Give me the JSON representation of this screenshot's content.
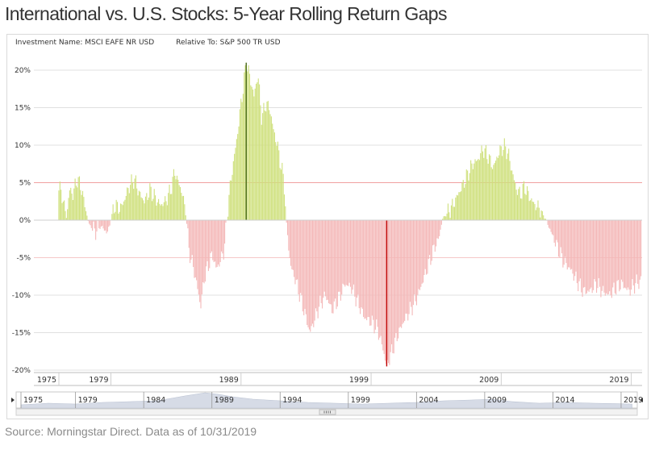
{
  "title": "International vs. U.S. Stocks: 5-Year Rolling Return Gaps",
  "header": {
    "investment": "Investment Name: MSCI EAFE NR USD",
    "relative": "Relative To: S&P 500 TR USD"
  },
  "source": "Source: Morningstar Direct. Data as of 10/31/2019",
  "colors": {
    "positive": "#cfe07d",
    "negative": "#f4b8b8",
    "grid": "#e0e0e0",
    "refline": "#f0a0a0",
    "highlightPos": "#4a6a1a",
    "highlightNeg": "#c00000"
  },
  "chart_data": {
    "type": "bar",
    "ylim": [
      -20,
      22
    ],
    "yticks": [
      {
        "v": 20,
        "label": "20%"
      },
      {
        "v": 15,
        "label": "15%"
      },
      {
        "v": 10,
        "label": "10%"
      },
      {
        "v": 5,
        "label": "5%"
      },
      {
        "v": 0,
        "label": "0%"
      },
      {
        "v": -5,
        "label": "-5%"
      },
      {
        "v": -10,
        "label": "-10%"
      },
      {
        "v": -15,
        "label": "-15%"
      },
      {
        "v": -20,
        "label": "-20%"
      }
    ],
    "x_range": [
      1975.0,
      2019.83
    ],
    "x_tick_labels": [
      {
        "year": 1975,
        "label": "1975"
      },
      {
        "year": 1979,
        "label": "1979"
      },
      {
        "year": 1989,
        "label": "1989"
      },
      {
        "year": 1999,
        "label": "1999"
      },
      {
        "year": 2009,
        "label": "2009"
      },
      {
        "year": 2019,
        "label": "2019"
      }
    ],
    "navigator_labels": [
      {
        "year": 1975,
        "label": "1975"
      },
      {
        "year": 1979,
        "label": "1979"
      },
      {
        "year": 1984,
        "label": "1984"
      },
      {
        "year": 1989,
        "label": "1989"
      },
      {
        "year": 1994,
        "label": "1994"
      },
      {
        "year": 1999,
        "label": "1999"
      },
      {
        "year": 2004,
        "label": "2004"
      },
      {
        "year": 2009,
        "label": "2009"
      },
      {
        "year": 2014,
        "label": "2014"
      },
      {
        "year": 2019,
        "label": "2019"
      }
    ],
    "series_points": [
      [
        1975.0,
        4.5
      ],
      [
        1975.3,
        3.0
      ],
      [
        1975.6,
        0.2
      ],
      [
        1975.8,
        4.0
      ],
      [
        1976.1,
        3.5
      ],
      [
        1976.4,
        5.5
      ],
      [
        1976.7,
        4.5
      ],
      [
        1977.0,
        2.0
      ],
      [
        1977.3,
        -0.5
      ],
      [
        1977.8,
        -1.5
      ],
      [
        1978.3,
        -0.8
      ],
      [
        1978.8,
        -1.8
      ],
      [
        1979.0,
        0.2
      ],
      [
        1979.3,
        2.0
      ],
      [
        1979.7,
        1.5
      ],
      [
        1980.0,
        2.5
      ],
      [
        1980.4,
        4.5
      ],
      [
        1980.8,
        5.5
      ],
      [
        1981.2,
        3.5
      ],
      [
        1981.6,
        2.5
      ],
      [
        1982.0,
        4.0
      ],
      [
        1982.4,
        3.0
      ],
      [
        1982.8,
        2.0
      ],
      [
        1983.2,
        2.5
      ],
      [
        1983.6,
        4.0
      ],
      [
        1983.9,
        6.5
      ],
      [
        1984.2,
        5.0
      ],
      [
        1984.5,
        3.5
      ],
      [
        1984.8,
        0.3
      ],
      [
        1985.0,
        -4.0
      ],
      [
        1985.3,
        -6.0
      ],
      [
        1985.6,
        -8.5
      ],
      [
        1985.9,
        -11.5
      ],
      [
        1986.2,
        -7.5
      ],
      [
        1986.5,
        -6.0
      ],
      [
        1986.8,
        -4.5
      ],
      [
        1987.1,
        -6.5
      ],
      [
        1987.4,
        -5.5
      ],
      [
        1987.7,
        -4.0
      ],
      [
        1987.9,
        -0.3
      ],
      [
        1988.1,
        3.5
      ],
      [
        1988.4,
        7.5
      ],
      [
        1988.7,
        11.0
      ],
      [
        1989.0,
        15.5
      ],
      [
        1989.2,
        18.0
      ],
      [
        1989.4,
        21.0
      ],
      [
        1989.7,
        19.0
      ],
      [
        1990.0,
        16.5
      ],
      [
        1990.3,
        19.5
      ],
      [
        1990.6,
        13.5
      ],
      [
        1990.9,
        15.5
      ],
      [
        1991.2,
        15.0
      ],
      [
        1991.5,
        12.0
      ],
      [
        1991.8,
        10.0
      ],
      [
        1992.1,
        7.0
      ],
      [
        1992.3,
        5.5
      ],
      [
        1992.5,
        -0.5
      ],
      [
        1992.8,
        -6.0
      ],
      [
        1993.2,
        -8.0
      ],
      [
        1993.6,
        -10.5
      ],
      [
        1994.0,
        -13.0
      ],
      [
        1994.3,
        -15.0
      ],
      [
        1994.6,
        -13.5
      ],
      [
        1995.0,
        -11.5
      ],
      [
        1995.5,
        -10.0
      ],
      [
        1996.0,
        -12.0
      ],
      [
        1996.5,
        -10.5
      ],
      [
        1997.0,
        -8.5
      ],
      [
        1997.5,
        -9.0
      ],
      [
        1998.0,
        -11.0
      ],
      [
        1998.5,
        -13.0
      ],
      [
        1999.0,
        -13.5
      ],
      [
        1999.5,
        -14.5
      ],
      [
        1999.9,
        -17.0
      ],
      [
        2000.2,
        -19.5
      ],
      [
        2000.6,
        -17.5
      ],
      [
        2001.0,
        -15.5
      ],
      [
        2001.5,
        -13.5
      ],
      [
        2002.0,
        -12.0
      ],
      [
        2002.5,
        -10.5
      ],
      [
        2003.0,
        -8.0
      ],
      [
        2003.5,
        -5.5
      ],
      [
        2003.9,
        -3.5
      ],
      [
        2004.2,
        -2.5
      ],
      [
        2004.5,
        0.2
      ],
      [
        2004.9,
        1.0
      ],
      [
        2005.3,
        2.0
      ],
      [
        2005.7,
        3.5
      ],
      [
        2006.0,
        4.5
      ],
      [
        2006.4,
        6.0
      ],
      [
        2006.8,
        7.5
      ],
      [
        2007.2,
        8.0
      ],
      [
        2007.6,
        9.5
      ],
      [
        2008.0,
        8.5
      ],
      [
        2008.4,
        7.0
      ],
      [
        2008.7,
        8.5
      ],
      [
        2009.0,
        9.5
      ],
      [
        2009.3,
        9.8
      ],
      [
        2009.6,
        8.5
      ],
      [
        2009.9,
        6.0
      ],
      [
        2010.2,
        4.0
      ],
      [
        2010.5,
        3.5
      ],
      [
        2010.8,
        4.5
      ],
      [
        2011.2,
        3.0
      ],
      [
        2011.6,
        2.0
      ],
      [
        2012.0,
        1.5
      ],
      [
        2012.4,
        0.2
      ],
      [
        2012.8,
        -1.5
      ],
      [
        2013.3,
        -3.5
      ],
      [
        2013.8,
        -5.5
      ],
      [
        2014.3,
        -6.5
      ],
      [
        2014.8,
        -8.0
      ],
      [
        2015.3,
        -9.5
      ],
      [
        2015.8,
        -9.5
      ],
      [
        2016.3,
        -8.5
      ],
      [
        2016.8,
        -9.5
      ],
      [
        2017.3,
        -10.0
      ],
      [
        2017.8,
        -9.0
      ],
      [
        2018.3,
        -8.5
      ],
      [
        2018.8,
        -9.5
      ],
      [
        2019.3,
        -8.5
      ],
      [
        2019.83,
        -8.0
      ]
    ],
    "navigator_series": [
      [
        1975,
        0.2
      ],
      [
        1977,
        0.3
      ],
      [
        1979,
        0.25
      ],
      [
        1981,
        0.35
      ],
      [
        1983,
        0.4
      ],
      [
        1985,
        0.45
      ],
      [
        1987,
        0.75
      ],
      [
        1988.5,
        0.95
      ],
      [
        1989.5,
        0.85
      ],
      [
        1990.5,
        0.7
      ],
      [
        1992,
        0.55
      ],
      [
        1994,
        0.45
      ],
      [
        1996,
        0.35
      ],
      [
        1998,
        0.3
      ],
      [
        2000,
        0.25
      ],
      [
        2002,
        0.3
      ],
      [
        2004,
        0.35
      ],
      [
        2006,
        0.45
      ],
      [
        2008,
        0.5
      ],
      [
        2009.5,
        0.55
      ],
      [
        2011,
        0.4
      ],
      [
        2013,
        0.3
      ],
      [
        2015,
        0.35
      ],
      [
        2017,
        0.3
      ],
      [
        2019.8,
        0.25
      ]
    ],
    "highlights": [
      [
        1989.4,
        21.0
      ],
      [
        2000.2,
        -19.5
      ]
    ]
  }
}
